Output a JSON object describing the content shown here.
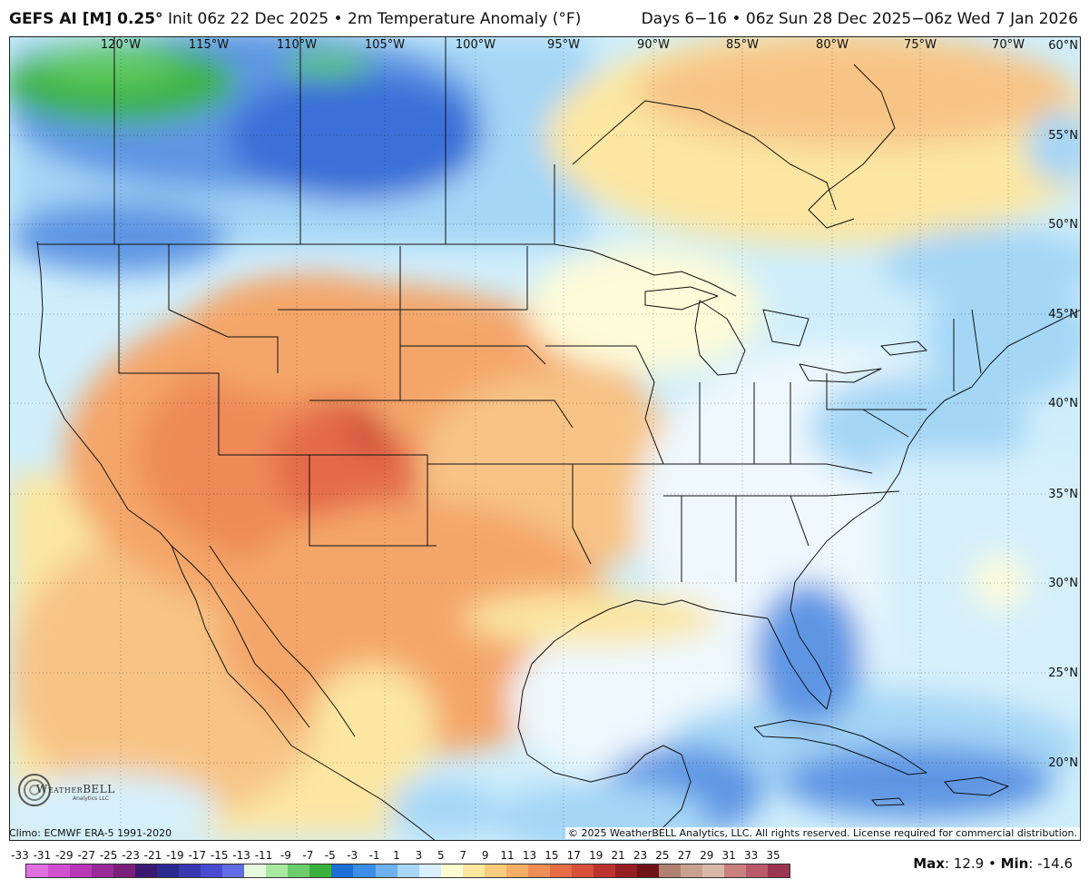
{
  "header": {
    "model": "GEFS AI [M] 0.25°",
    "init": "Init 06z 22 Dec 2025",
    "field": "2m Temperature Anomaly (°F)",
    "bullet": "•",
    "valid": "Days 6−16 • 06z Sun 28 Dec 2025−06z Wed 7 Jan 2026"
  },
  "map": {
    "longitude_labels": [
      "120°W",
      "115°W",
      "110°W",
      "105°W",
      "100°W",
      "95°W",
      "90°W",
      "85°W",
      "80°W",
      "75°W",
      "70°W"
    ],
    "latitude_labels": [
      "60°N",
      "55°N",
      "50°N",
      "45°N",
      "40°N",
      "35°N",
      "30°N",
      "25°N",
      "20°N"
    ]
  },
  "logo": {
    "text": "WeatherBELL",
    "subtext": "Analytics LLC"
  },
  "footer": {
    "climo": "Climo: ECMWF ERA-5 1991-2020",
    "copyright": "© 2025 WeatherBELL Analytics, LLC. All rights reserved. License required for commercial distribution."
  },
  "legend": {
    "labels": [
      "-33",
      "-31",
      "-29",
      "-27",
      "-25",
      "-23",
      "-21",
      "-19",
      "-17",
      "-15",
      "-13",
      "-11",
      "-9",
      "-7",
      "-5",
      "-3",
      "-1",
      "1",
      "3",
      "5",
      "7",
      "9",
      "11",
      "13",
      "15",
      "17",
      "19",
      "21",
      "23",
      "25",
      "27",
      "29",
      "31",
      "33",
      "35"
    ],
    "colors": [
      "#e070e0",
      "#d050d0",
      "#b838b8",
      "#9a2a9a",
      "#7a1f7a",
      "#3a1a70",
      "#2a2a90",
      "#3838b0",
      "#4a4ad0",
      "#5f6de6",
      "#e8f8e0",
      "#a8e8a0",
      "#6ccc6c",
      "#3cb03c",
      "#1d6fd8",
      "#3d8ee8",
      "#6fb0f0",
      "#a8d6f8",
      "#d8f0fc",
      "#fdfbd0",
      "#fbe7a0",
      "#f8cc7c",
      "#f4ae66",
      "#ee8e56",
      "#e56e46",
      "#d6503a",
      "#bb3430",
      "#961f24",
      "#6e1418",
      "#b08070",
      "#c8a090",
      "#d8b8a8",
      "#c88080",
      "#b85a6a",
      "#9a3650"
    ]
  },
  "stats": {
    "max_label": "Max",
    "max_value": "12.9",
    "separator": "•",
    "min_label": "Min",
    "min_value": "-14.6"
  }
}
